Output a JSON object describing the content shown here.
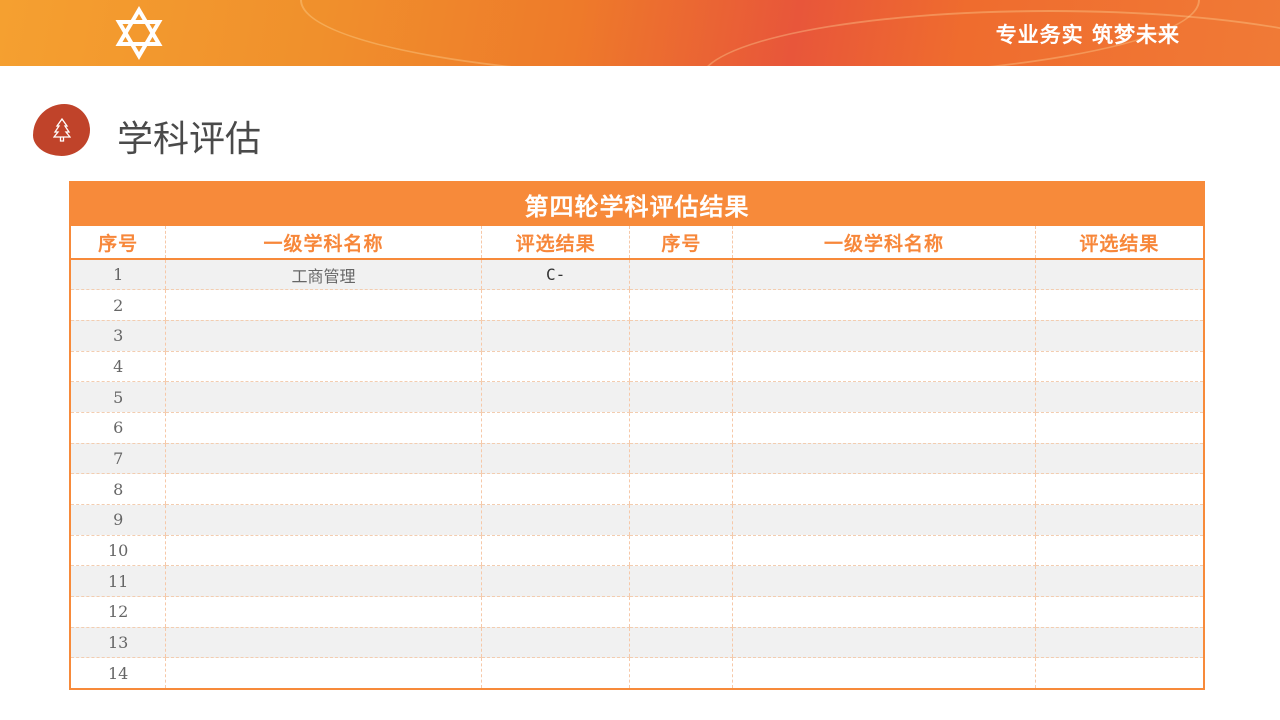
{
  "header": {
    "slogan": "专业务实 筑梦未来",
    "logo": "star-logo"
  },
  "section": {
    "title": "学科评估",
    "icon": "tree-icon"
  },
  "table": {
    "caption": "第四轮学科评估结果",
    "columns": [
      "序号",
      "一级学科名称",
      "评选结果",
      "序号",
      "一级学科名称",
      "评选结果"
    ],
    "rows": [
      [
        "1",
        "工商管理",
        "C-",
        "",
        "",
        ""
      ],
      [
        "2",
        "",
        "",
        "",
        "",
        ""
      ],
      [
        "3",
        "",
        "",
        "",
        "",
        ""
      ],
      [
        "4",
        "",
        "",
        "",
        "",
        ""
      ],
      [
        "5",
        "",
        "",
        "",
        "",
        ""
      ],
      [
        "6",
        "",
        "",
        "",
        "",
        ""
      ],
      [
        "7",
        "",
        "",
        "",
        "",
        ""
      ],
      [
        "8",
        "",
        "",
        "",
        "",
        ""
      ],
      [
        "9",
        "",
        "",
        "",
        "",
        ""
      ],
      [
        "10",
        "",
        "",
        "",
        "",
        ""
      ],
      [
        "11",
        "",
        "",
        "",
        "",
        ""
      ],
      [
        "12",
        "",
        "",
        "",
        "",
        ""
      ],
      [
        "13",
        "",
        "",
        "",
        "",
        ""
      ],
      [
        "14",
        "",
        "",
        "",
        "",
        ""
      ]
    ]
  },
  "colors": {
    "accent": "#f78a3a",
    "icon_bg": "#c0432a"
  }
}
